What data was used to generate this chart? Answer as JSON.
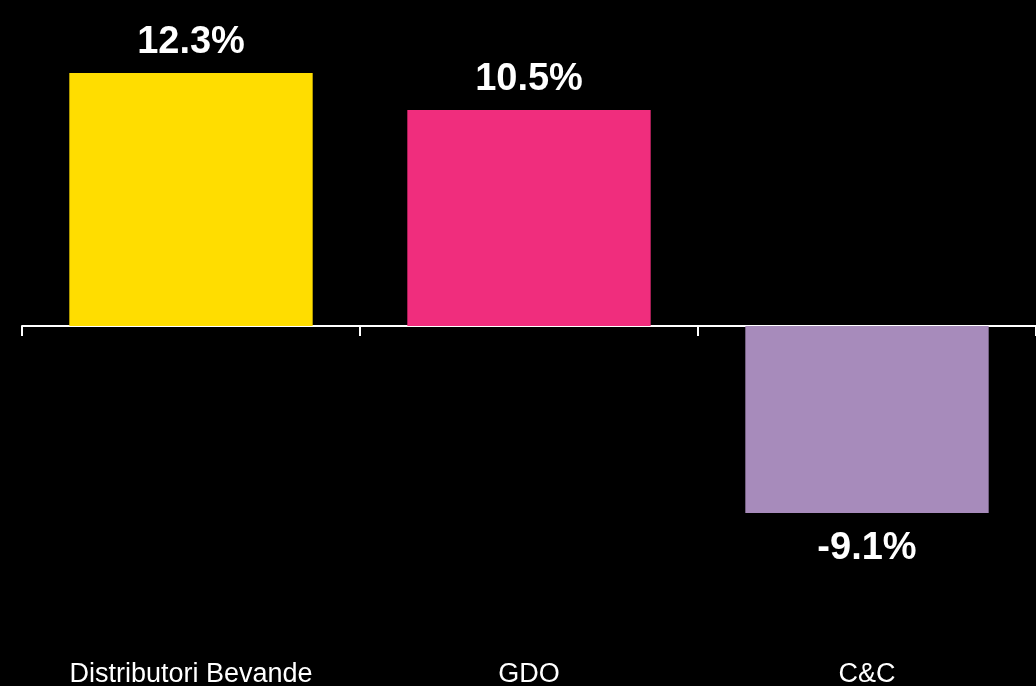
{
  "chart_data": {
    "type": "bar",
    "categories": [
      "Distributori Bevande",
      "GDO",
      "C&C"
    ],
    "values": [
      12.3,
      10.5,
      -9.1
    ],
    "colors": [
      "#ffdd00",
      "#f02d7d",
      "#a78bbb"
    ],
    "value_labels": [
      "12.3%",
      "10.5%",
      "-9.1%"
    ]
  }
}
